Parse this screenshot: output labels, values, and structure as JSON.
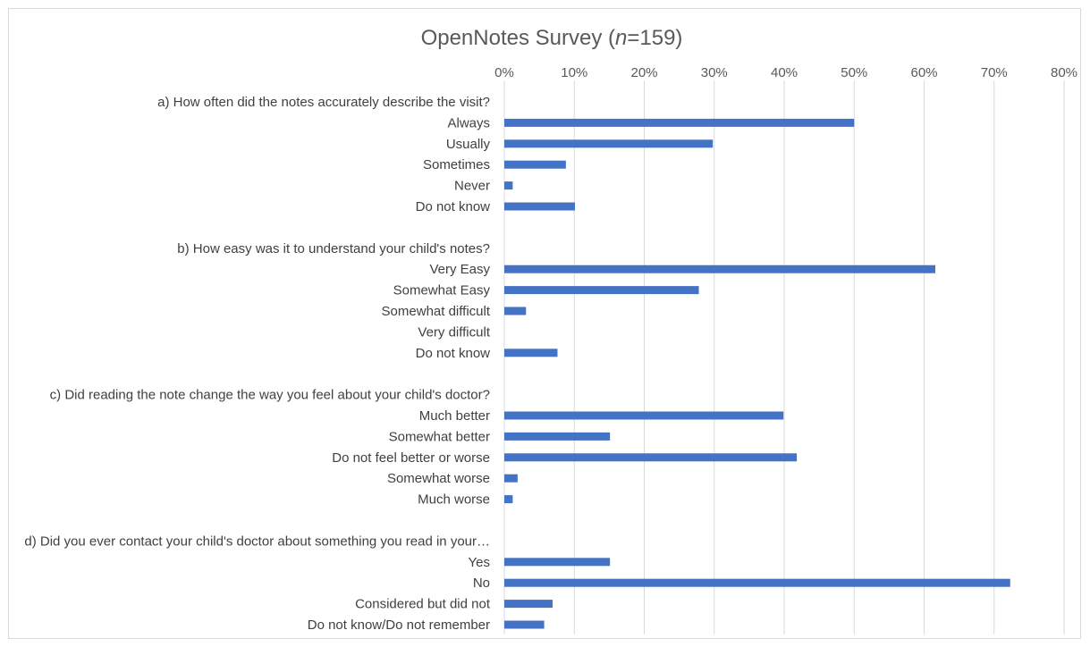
{
  "chart_data": {
    "type": "bar",
    "orientation": "horizontal",
    "title": "OpenNotes Survey (n=159)",
    "title_parts": {
      "before": "OpenNotes Survey (",
      "italic": "n",
      "after": "=159)"
    },
    "xlim": [
      0,
      80
    ],
    "x_ticks": [
      "0%",
      "10%",
      "20%",
      "30%",
      "40%",
      "50%",
      "60%",
      "70%",
      "80%"
    ],
    "unit": "%",
    "grid": "vertical",
    "bar_color": "#4472c4",
    "rows": [
      {
        "label": "a) How often did the notes accurately describe the visit?",
        "value": null,
        "header": true
      },
      {
        "label": "Always",
        "value": 50
      },
      {
        "label": "Usually",
        "value": 29.8
      },
      {
        "label": "Sometimes",
        "value": 8.8
      },
      {
        "label": "Never",
        "value": 1.2
      },
      {
        "label": "Do not know",
        "value": 10.1
      },
      {
        "label": "",
        "value": null,
        "spacer": true
      },
      {
        "label": "b) How easy was it to understand your child's notes?",
        "value": null,
        "header": true
      },
      {
        "label": "Very Easy",
        "value": 61.6
      },
      {
        "label": "Somewhat Easy",
        "value": 27.8
      },
      {
        "label": "Somewhat difficult",
        "value": 3.1
      },
      {
        "label": "Very difficult",
        "value": 0
      },
      {
        "label": "Do not know",
        "value": 7.6
      },
      {
        "label": "",
        "value": null,
        "spacer": true
      },
      {
        "label": "c) Did reading the note change the way you feel about your child's doctor?",
        "value": null,
        "header": true
      },
      {
        "label": "Much better",
        "value": 39.9
      },
      {
        "label": "Somewhat better",
        "value": 15.1
      },
      {
        "label": "Do not feel better or worse",
        "value": 41.8
      },
      {
        "label": "Somewhat worse",
        "value": 1.9
      },
      {
        "label": "Much worse",
        "value": 1.2
      },
      {
        "label": "",
        "value": null,
        "spacer": true
      },
      {
        "label": "d) Did you ever contact your child's doctor about something you read in your…",
        "value": null,
        "header": true
      },
      {
        "label": "Yes",
        "value": 15.1
      },
      {
        "label": "No",
        "value": 72.3
      },
      {
        "label": "Considered but did not",
        "value": 6.9
      },
      {
        "label": "Do not know/Do not remember",
        "value": 5.7
      }
    ]
  }
}
